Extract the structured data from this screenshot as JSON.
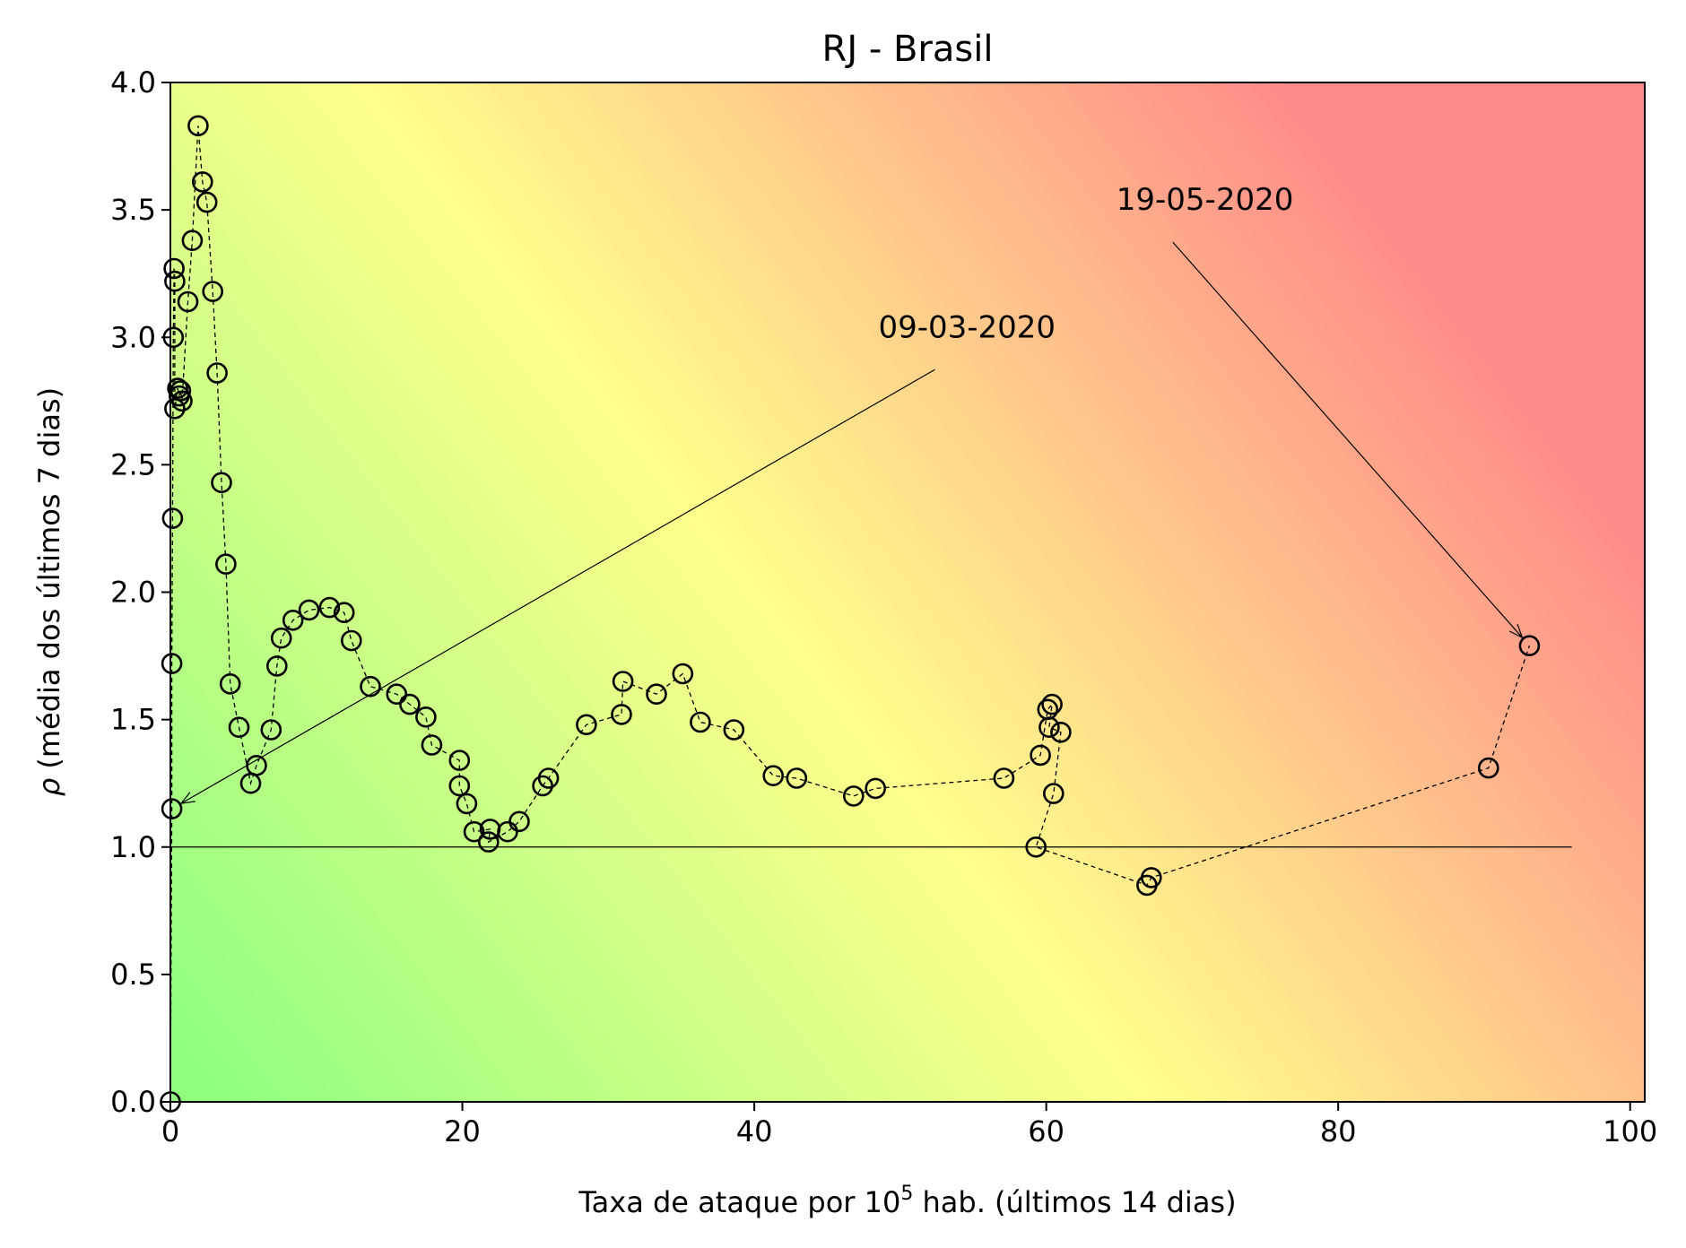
{
  "chart_data": {
    "type": "scatter",
    "title": "RJ - Brasil",
    "xlabel_prefix": "Taxa de ataque por 10",
    "xlabel_sup": "5",
    "xlabel_suffix": " hab. (últimos 14 dias)",
    "ylabel_symbol": "ρ",
    "ylabel_text": " (média dos últimos 7 dias)",
    "xlim": [
      0,
      101
    ],
    "ylim": [
      0,
      4
    ],
    "xticks": [
      0,
      20,
      40,
      60,
      80,
      100
    ],
    "xtick_labels": [
      "0",
      "20",
      "40",
      "60",
      "80",
      "100"
    ],
    "yticks": [
      0,
      0.5,
      1,
      1.5,
      2,
      2.5,
      3,
      3.5,
      4
    ],
    "ytick_labels": [
      "0.0",
      "0.5",
      "1.0",
      "1.5",
      "2.0",
      "2.5",
      "3.0",
      "3.5",
      "4.0"
    ],
    "reference_line": {
      "y": 1.0,
      "x_start": 0,
      "x_end": 96
    },
    "background_colors": {
      "low": "#90ff80",
      "mid": "#ffff8c",
      "high": "#ff8a8a"
    },
    "series": [
      {
        "marker": "open-circle",
        "line_style": "dashed",
        "points": [
          [
            0.0,
            0.0
          ],
          [
            0.1,
            1.15
          ],
          [
            0.1,
            1.72
          ],
          [
            0.15,
            2.29
          ],
          [
            0.2,
            3.0
          ],
          [
            0.25,
            3.27
          ],
          [
            0.3,
            3.22
          ],
          [
            0.3,
            2.72
          ],
          [
            0.5,
            2.8
          ],
          [
            0.6,
            2.77
          ],
          [
            0.7,
            2.79
          ],
          [
            0.8,
            2.75
          ],
          [
            1.2,
            3.14
          ],
          [
            1.5,
            3.38
          ],
          [
            1.9,
            3.83
          ],
          [
            2.2,
            3.61
          ],
          [
            2.5,
            3.53
          ],
          [
            2.9,
            3.18
          ],
          [
            3.2,
            2.86
          ],
          [
            3.5,
            2.43
          ],
          [
            3.8,
            2.11
          ],
          [
            4.1,
            1.64
          ],
          [
            4.7,
            1.47
          ],
          [
            5.5,
            1.25
          ],
          [
            5.9,
            1.32
          ],
          [
            6.9,
            1.46
          ],
          [
            7.3,
            1.71
          ],
          [
            7.6,
            1.82
          ],
          [
            8.4,
            1.89
          ],
          [
            9.5,
            1.93
          ],
          [
            10.9,
            1.94
          ],
          [
            11.9,
            1.92
          ],
          [
            12.4,
            1.81
          ],
          [
            13.7,
            1.63
          ],
          [
            15.5,
            1.6
          ],
          [
            16.4,
            1.56
          ],
          [
            17.5,
            1.51
          ],
          [
            17.9,
            1.4
          ],
          [
            19.8,
            1.34
          ],
          [
            19.8,
            1.24
          ],
          [
            20.3,
            1.17
          ],
          [
            20.8,
            1.06
          ],
          [
            21.9,
            1.07
          ],
          [
            21.8,
            1.02
          ],
          [
            23.1,
            1.06
          ],
          [
            23.9,
            1.1
          ],
          [
            25.5,
            1.24
          ],
          [
            25.9,
            1.27
          ],
          [
            28.5,
            1.48
          ],
          [
            30.9,
            1.52
          ],
          [
            31.0,
            1.65
          ],
          [
            33.3,
            1.6
          ],
          [
            35.1,
            1.68
          ],
          [
            36.3,
            1.49
          ],
          [
            38.6,
            1.46
          ],
          [
            41.3,
            1.28
          ],
          [
            42.9,
            1.27
          ],
          [
            46.8,
            1.2
          ],
          [
            48.3,
            1.23
          ],
          [
            57.1,
            1.27
          ],
          [
            59.6,
            1.36
          ],
          [
            60.1,
            1.54
          ],
          [
            60.4,
            1.56
          ],
          [
            60.2,
            1.47
          ],
          [
            61.0,
            1.45
          ],
          [
            60.5,
            1.21
          ],
          [
            59.3,
            1.0
          ],
          [
            66.9,
            0.85
          ],
          [
            67.2,
            0.88
          ],
          [
            90.3,
            1.31
          ],
          [
            93.1,
            1.79
          ]
        ]
      }
    ],
    "annotations": [
      {
        "label": "09-03-2020",
        "target": [
          0.1,
          1.15
        ],
        "text_at": [
          48.5,
          3.0
        ]
      },
      {
        "label": "19-05-2020",
        "target": [
          93.1,
          1.79
        ],
        "text_at": [
          64.8,
          3.5
        ]
      }
    ]
  }
}
